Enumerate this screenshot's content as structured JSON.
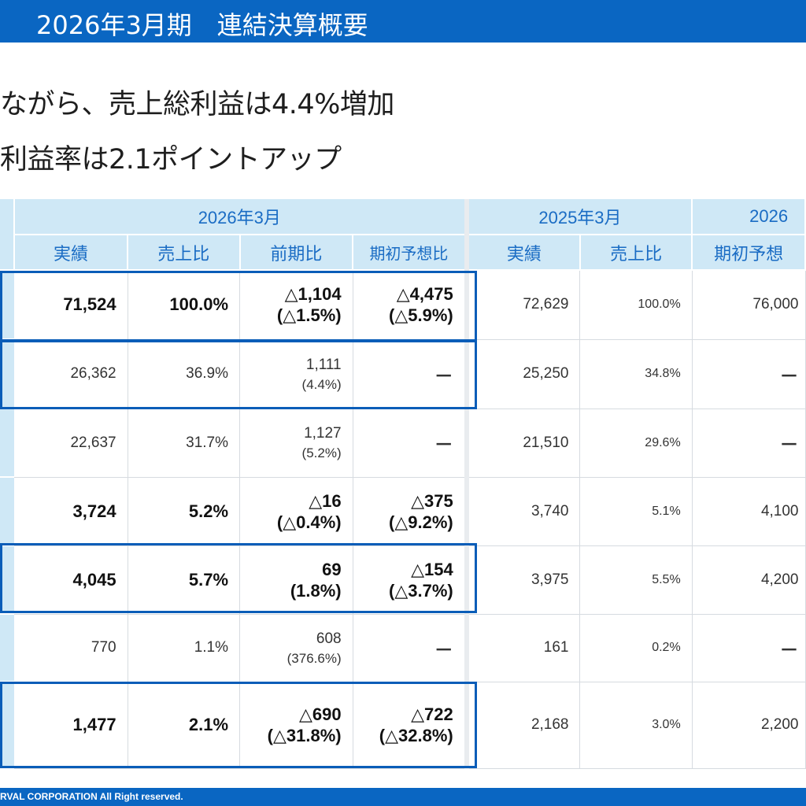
{
  "header": {
    "title": "2026年3月期　連結決算概要"
  },
  "headlines": [
    "ながら、売上総利益は4.4%増加",
    "利益率は2.1ポイントアップ"
  ],
  "table": {
    "group_headers": [
      "2026年3月",
      "2025年3月",
      "2026"
    ],
    "sub_headers": [
      "実績",
      "売上比",
      "前期比",
      "期初予想比",
      "実績",
      "売上比",
      "期初予想"
    ],
    "rows": [
      {
        "bold": true,
        "actual": "71,524",
        "ratio": "100.0%",
        "yoy": "△1,104",
        "yoy_pct": "(△1.5%)",
        "vs_plan": "△4,475",
        "vs_plan_pct": "(△5.9%)",
        "prev_actual": "72,629",
        "prev_ratio": "100.0%",
        "plan": "76,000"
      },
      {
        "bold": false,
        "actual": "26,362",
        "ratio": "36.9%",
        "yoy": "1,111",
        "yoy_pct": "(4.4%)",
        "vs_plan": "－",
        "vs_plan_pct": "",
        "prev_actual": "25,250",
        "prev_ratio": "34.8%",
        "plan": "－"
      },
      {
        "bold": false,
        "actual": "22,637",
        "ratio": "31.7%",
        "yoy": "1,127",
        "yoy_pct": "(5.2%)",
        "vs_plan": "－",
        "vs_plan_pct": "",
        "prev_actual": "21,510",
        "prev_ratio": "29.6%",
        "plan": "－"
      },
      {
        "bold": true,
        "actual": "3,724",
        "ratio": "5.2%",
        "yoy": "△16",
        "yoy_pct": "(△0.4%)",
        "vs_plan": "△375",
        "vs_plan_pct": "(△9.2%)",
        "prev_actual": "3,740",
        "prev_ratio": "5.1%",
        "plan": "4,100"
      },
      {
        "bold": true,
        "actual": "4,045",
        "ratio": "5.7%",
        "yoy": "69",
        "yoy_pct": "(1.8%)",
        "vs_plan": "△154",
        "vs_plan_pct": "(△3.7%)",
        "prev_actual": "3,975",
        "prev_ratio": "5.5%",
        "plan": "4,200"
      },
      {
        "bold": false,
        "actual": "770",
        "ratio": "1.1%",
        "yoy": "608",
        "yoy_pct": "(376.6%)",
        "vs_plan": "－",
        "vs_plan_pct": "",
        "prev_actual": "161",
        "prev_ratio": "0.2%",
        "plan": "－"
      },
      {
        "bold": true,
        "actual": "1,477",
        "ratio": "2.1%",
        "yoy": "△690",
        "yoy_pct": "(△31.8%)",
        "vs_plan": "△722",
        "vs_plan_pct": "(△32.8%)",
        "prev_actual": "2,168",
        "prev_ratio": "3.0%",
        "plan": "2,200"
      }
    ]
  },
  "footer": {
    "copyright": "RVAL CORPORATION All Right reserved."
  },
  "colors": {
    "brand_blue": "#0a66c2",
    "header_bg": "#cfe8f6",
    "header_text": "#1a6cc4",
    "highlight_border": "#0a5db8"
  }
}
